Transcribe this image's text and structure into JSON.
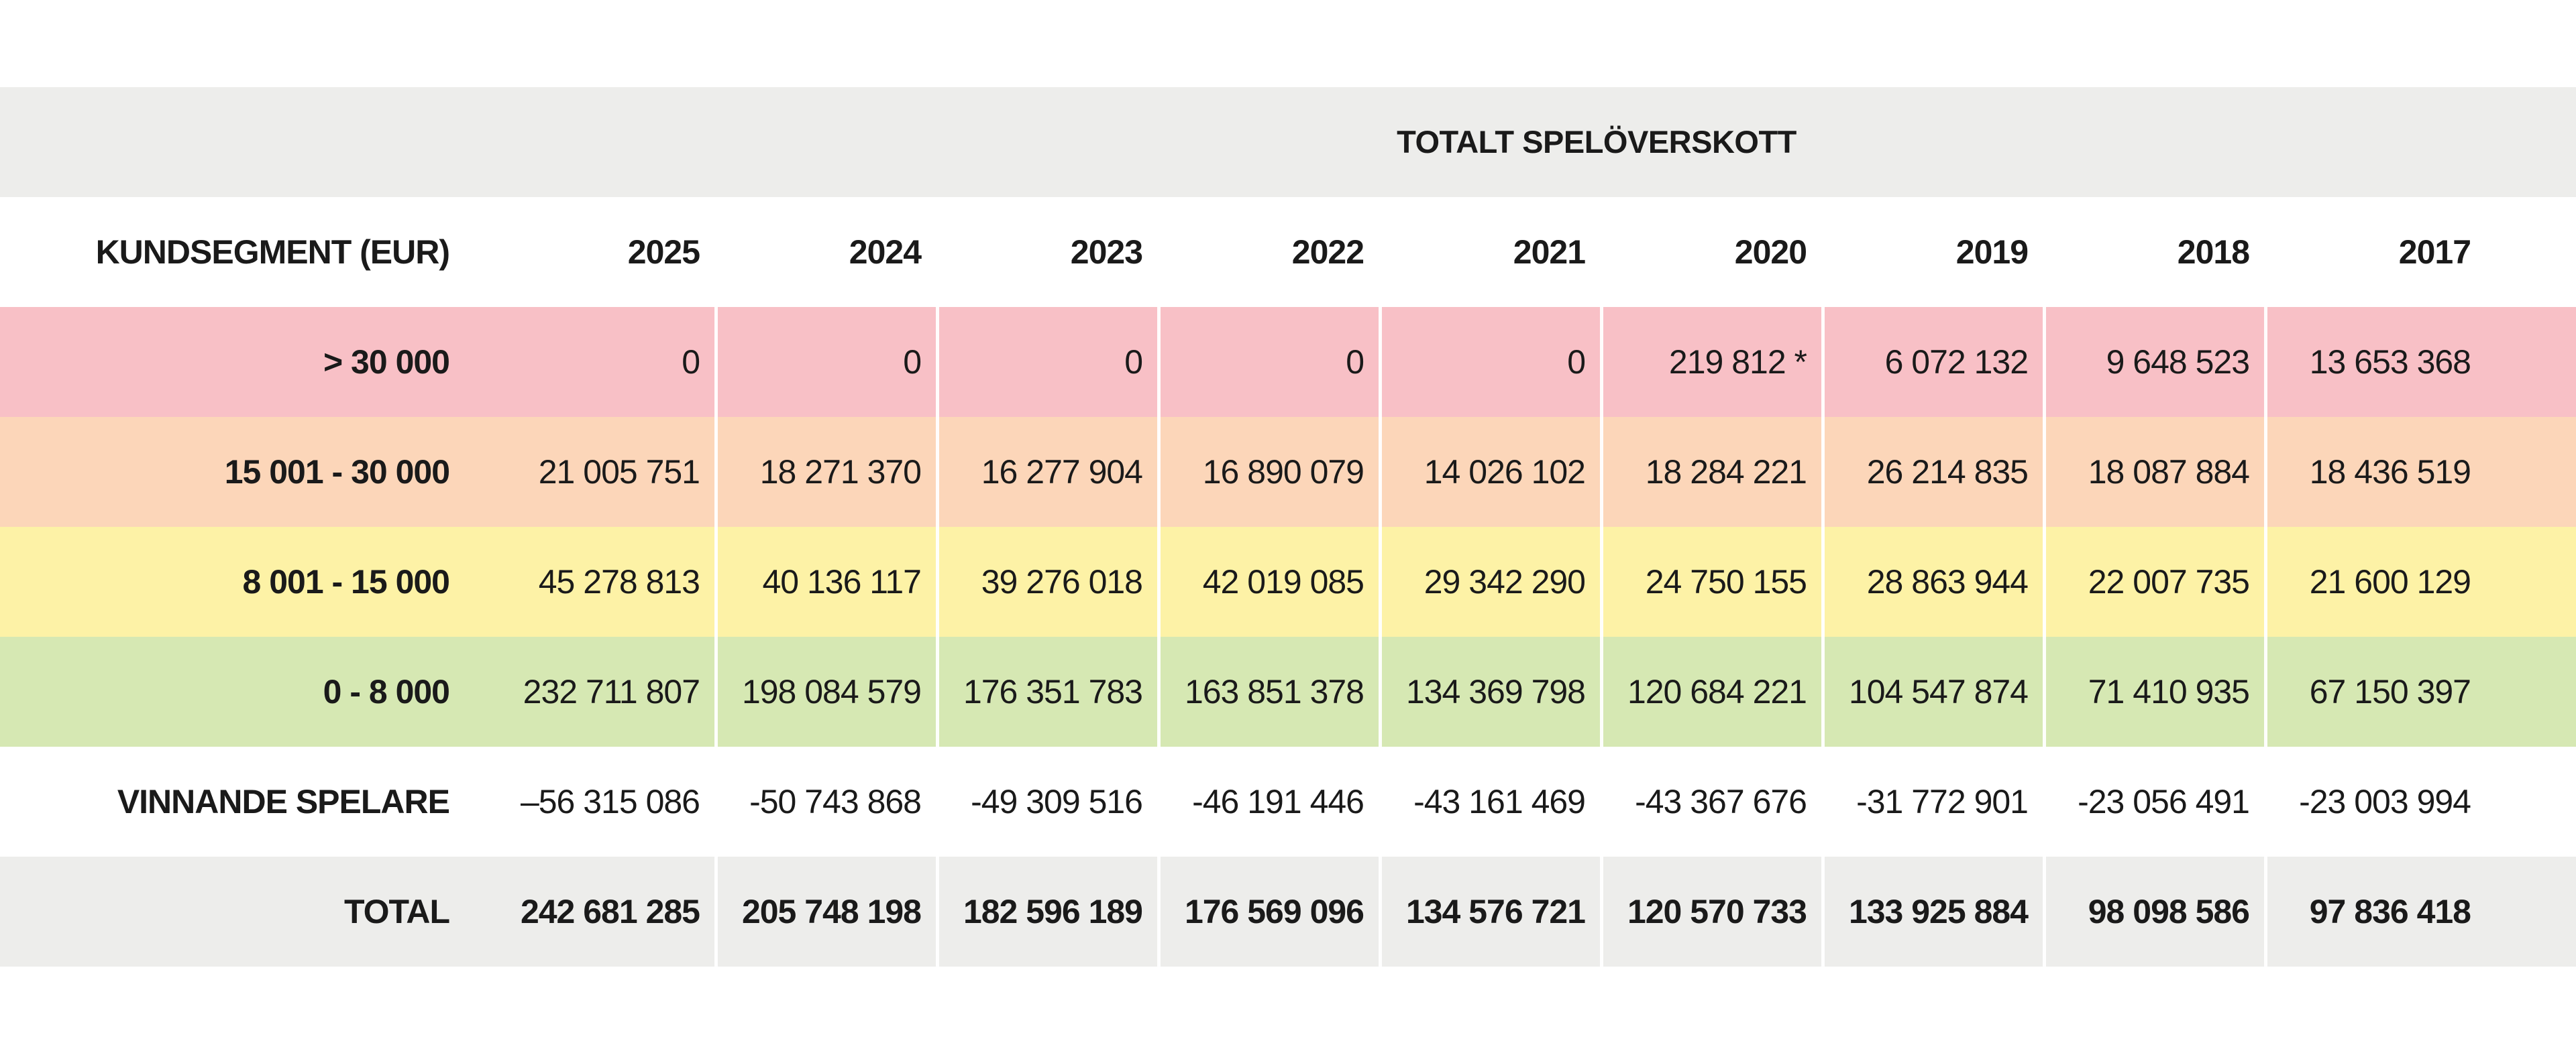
{
  "table": {
    "title": "TOTALT SPELÖVERSKOTT",
    "segment_header": "KUNDSEGMENT (EUR)",
    "years": [
      "2025",
      "2024",
      "2023",
      "2022",
      "2021",
      "2020",
      "2019",
      "2018",
      "2017"
    ],
    "rows": [
      {
        "label": "> 30 000",
        "color": "#f8c0c6",
        "values": [
          "0",
          "0",
          "0",
          "0",
          "0",
          "219 812 *",
          "6 072 132",
          "9 648 523",
          "13 653 368"
        ]
      },
      {
        "label": "15 001 - 30 000",
        "color": "#fcd6b9",
        "values": [
          "21 005 751",
          "18 271 370",
          "16 277 904",
          "16 890 079",
          "14 026 102",
          "18 284 221",
          "26 214 835",
          "18 087 884",
          "18 436 519"
        ]
      },
      {
        "label": "8 001 - 15 000",
        "color": "#fdf2a6",
        "values": [
          "45 278 813",
          "40 136 117",
          "39 276 018",
          "42 019 085",
          "29 342 290",
          "24 750 155",
          "28 863 944",
          "22 007 735",
          "21 600 129"
        ]
      },
      {
        "label": "0 - 8 000",
        "color": "#d6e8b3",
        "values": [
          "232 711 807",
          "198 084 579",
          "176 351 783",
          "163 851 378",
          "134 369 798",
          "120 684 221",
          "104 547 874",
          "71 410 935",
          "67 150 397"
        ]
      },
      {
        "label": "VINNANDE SPELARE",
        "color": "#ffffff",
        "values": [
          "–56 315 086",
          "-50 743 868",
          "-49 309 516",
          "-46 191 446",
          "-43 161 469",
          "-43 367 676",
          "-31 772 901",
          "-23 056 491",
          "-23 003 994"
        ]
      },
      {
        "label": "TOTAL",
        "color": "#ededeb",
        "values": [
          "242 681 285",
          "205 748 198",
          "182 596 189",
          "176 569 096",
          "134 576 721",
          "120 570 733",
          "133 925 884",
          "98 098 586",
          "97 836 418"
        ]
      }
    ]
  }
}
